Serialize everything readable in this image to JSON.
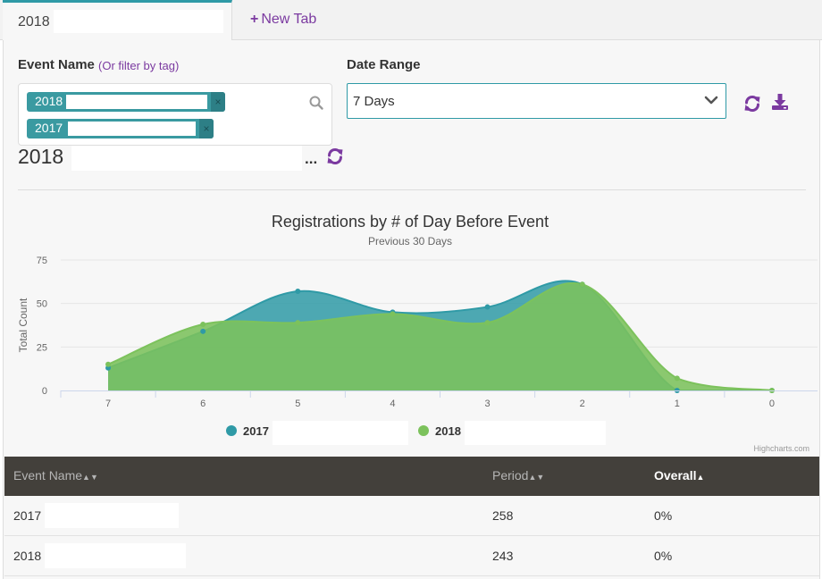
{
  "tabs": {
    "active_label": "2018",
    "new_tab_label": "New Tab"
  },
  "filters": {
    "event_name_label": "Event Name",
    "filter_by_tag_link": "(Or filter by tag)",
    "tags": [
      "2018",
      "2017"
    ],
    "date_range_label": "Date Range",
    "date_range_value": "7 Days",
    "icons": [
      "search-icon",
      "chevron-down-icon",
      "refresh-icon",
      "download-icon"
    ]
  },
  "report": {
    "title": "2018",
    "ellipsis": "..."
  },
  "chart_data": {
    "type": "area",
    "title": "Registrations by # of Day Before Event",
    "subtitle": "Previous 30 Days",
    "xlabel": "",
    "ylabel": "Total Count",
    "x": [
      7,
      6,
      5,
      4,
      3,
      2,
      1,
      0
    ],
    "ylim": [
      0,
      75
    ],
    "yticks": [
      0,
      25,
      50,
      75
    ],
    "grid": true,
    "series": [
      {
        "name": "2017",
        "color": "#2f9aa6",
        "values": [
          13,
          34,
          57,
          45,
          48,
          61,
          0,
          0
        ]
      },
      {
        "name": "2018",
        "color": "#7cc25c",
        "values": [
          15,
          38,
          39,
          44,
          39,
          61,
          7,
          0
        ]
      }
    ],
    "legend_position": "bottom-center",
    "credits": "Highcharts.com"
  },
  "table": {
    "headers": {
      "event_name": "Event Name",
      "period": "Period",
      "overall": "Overall"
    },
    "rows": [
      {
        "event_name": "2017",
        "period": "258",
        "overall": "0%"
      },
      {
        "event_name": "2018",
        "period": "243",
        "overall": "0%"
      }
    ]
  }
}
